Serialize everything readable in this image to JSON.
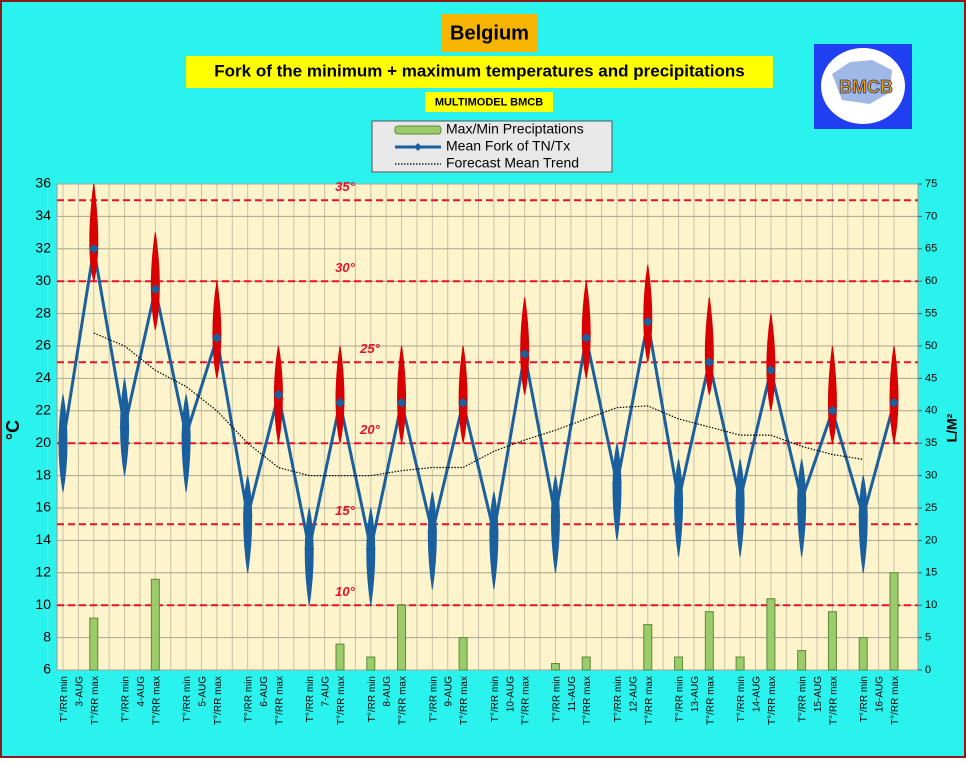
{
  "chart_data": {
    "type": "fork",
    "title": "Belgium",
    "subtitle": "Fork of the minimum + maximum temperatures and precipitations",
    "note": "MULTIMODEL BMCB",
    "logo_text": "BMCB",
    "y_label": "°C",
    "y2_label": "L/M²",
    "categories": [
      "T°/RR min",
      "T°/RR max",
      "T°/RR min",
      "T°/RR max",
      "T°/RR min",
      "T°/RR max",
      "T°/RR min",
      "T°/RR max",
      "T°/RR min",
      "T°/RR max",
      "T°/RR min",
      "T°/RR max",
      "T°/RR min",
      "T°/RR max",
      "T°/RR min",
      "T°/RR max",
      "T°/RR min",
      "T°/RR max",
      "T°/RR min",
      "T°/RR max",
      "T°/RR min",
      "T°/RR max",
      "T°/RR min",
      "T°/RR max",
      "T°/RR min",
      "T°/RR max",
      "T°/RR min",
      "T°/RR max"
    ],
    "groups": [
      "3-AUG",
      "4-AUG",
      "5-AUG",
      "6-AUG",
      "7-AUG",
      "8-AUG",
      "9-AUG",
      "10-AUG",
      "11-AUG",
      "12-AUG",
      "13-AUG",
      "14-AUG",
      "15-AUG",
      "16-AUG"
    ],
    "ylim": [
      6,
      36
    ],
    "yticks": [
      6,
      8,
      10,
      12,
      14,
      16,
      18,
      20,
      22,
      24,
      26,
      28,
      30,
      32,
      34,
      36
    ],
    "y2lim": [
      0,
      75
    ],
    "y2ticks": [
      0,
      5,
      10,
      15,
      20,
      25,
      30,
      35,
      40,
      45,
      50,
      55,
      60,
      65,
      70,
      75
    ],
    "grid": true,
    "legend_position": "top",
    "fork_colors": [
      "#1a5f9e",
      "#d80000"
    ],
    "reference_color": "#e8102a",
    "reference_lines": [
      {
        "value": 35,
        "label": "35°"
      },
      {
        "value": 30,
        "label": "30°"
      },
      {
        "value": 25,
        "label": "25°"
      },
      {
        "value": 20,
        "label": "20°"
      },
      {
        "value": 15,
        "label": "15°"
      },
      {
        "value": 10,
        "label": "10°"
      }
    ],
    "series": [
      {
        "name": "Max/Min Preciptations",
        "type": "bar",
        "axis": "y2",
        "color": "#9ccb6c",
        "values": [
          null,
          8,
          null,
          14,
          null,
          null,
          null,
          null,
          null,
          4,
          2,
          10,
          null,
          5,
          null,
          null,
          1,
          2,
          null,
          7,
          2,
          9,
          2,
          11,
          3,
          9,
          5,
          15
        ]
      },
      {
        "name": "Mean Fork of TN/Tx",
        "type": "fork",
        "color": "#1a5f9e",
        "values": [
          20,
          32,
          21,
          29.5,
          20.5,
          26.5,
          15.5,
          23,
          13.5,
          22.5,
          13.5,
          22.5,
          14.5,
          22.5,
          14.5,
          25.5,
          15.5,
          26.5,
          17.5,
          27.5,
          16.5,
          25,
          16.5,
          24.5,
          16.5,
          22,
          15.5,
          22.5
        ],
        "low": [
          17,
          30,
          18,
          27,
          17,
          24,
          12,
          20,
          10,
          20,
          10,
          20,
          11,
          20,
          11,
          23,
          12,
          24,
          14,
          25,
          13,
          23,
          13,
          22,
          13,
          20,
          12,
          20
        ],
        "high": [
          23,
          36,
          24,
          33,
          23,
          30,
          18,
          26,
          16,
          26,
          16,
          26,
          17,
          26,
          17,
          29,
          18,
          30,
          20,
          31,
          19,
          29,
          19,
          28,
          19,
          26,
          18,
          26
        ]
      },
      {
        "name": "Forecast Mean Trend",
        "type": "dotted",
        "color": "#000000",
        "values": [
          null,
          26.8,
          26,
          24.5,
          23.5,
          22,
          20,
          18.5,
          18,
          18,
          18,
          18.3,
          18.5,
          18.5,
          19.5,
          20.2,
          20.8,
          21.5,
          22.2,
          22.3,
          21.5,
          21,
          20.5,
          20.5,
          19.8,
          19.3,
          19,
          null
        ]
      }
    ]
  }
}
